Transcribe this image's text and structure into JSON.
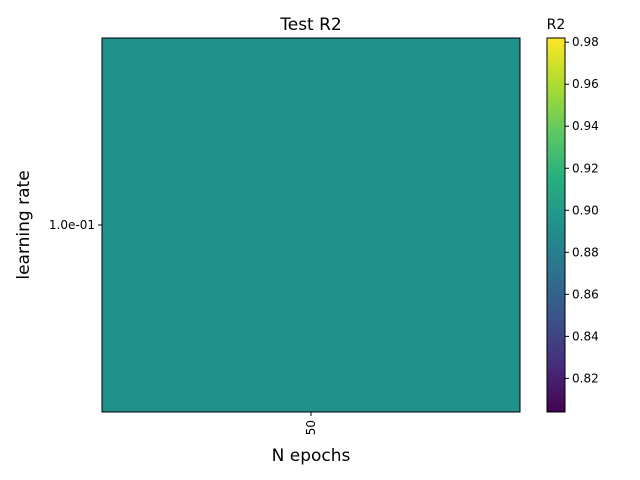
{
  "chart_data": {
    "type": "heatmap",
    "title": "Test R2",
    "xlabel": "N epochs",
    "ylabel": "learning rate",
    "x_categories": [
      "50"
    ],
    "y_categories": [
      "1.0e-01"
    ],
    "values": [
      [
        0.893
      ]
    ],
    "colormap": "viridis",
    "colorbar": {
      "label": "R2",
      "range": [
        0.804,
        0.982
      ],
      "ticks": [
        "0.82",
        "0.84",
        "0.86",
        "0.88",
        "0.90",
        "0.92",
        "0.94",
        "0.96",
        "0.98"
      ]
    },
    "grid": false
  }
}
